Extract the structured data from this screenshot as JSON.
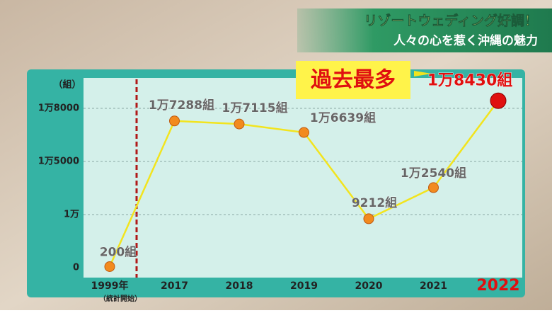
{
  "header": {
    "title": "リゾートウェディング好調！",
    "subtitle": "人々の心を惹く沖縄の魅力"
  },
  "chart_data": {
    "type": "line",
    "y_axis_label": "（組）",
    "categories": [
      "1999年",
      "2017",
      "2018",
      "2019",
      "2020",
      "2021",
      "2022"
    ],
    "category_note": "（統計開始）",
    "values": [
      200,
      17288,
      17115,
      16639,
      9212,
      12540,
      18430
    ],
    "value_labels": [
      "200組",
      "1万7288組",
      "1万7115組",
      "1万6639組",
      "9212組",
      "1万2540組",
      "1万8430組"
    ],
    "yticks": [
      0,
      {
        "value": 10000,
        "label": "1万"
      },
      {
        "value": 15000,
        "label": "1万5000"
      },
      {
        "value": 18000,
        "label": "1万8000"
      }
    ],
    "annotation": "過去最多",
    "color": "#f2e41e",
    "marker_color": "#f28a1e",
    "highlight_color": "#e01010",
    "grid": true
  }
}
